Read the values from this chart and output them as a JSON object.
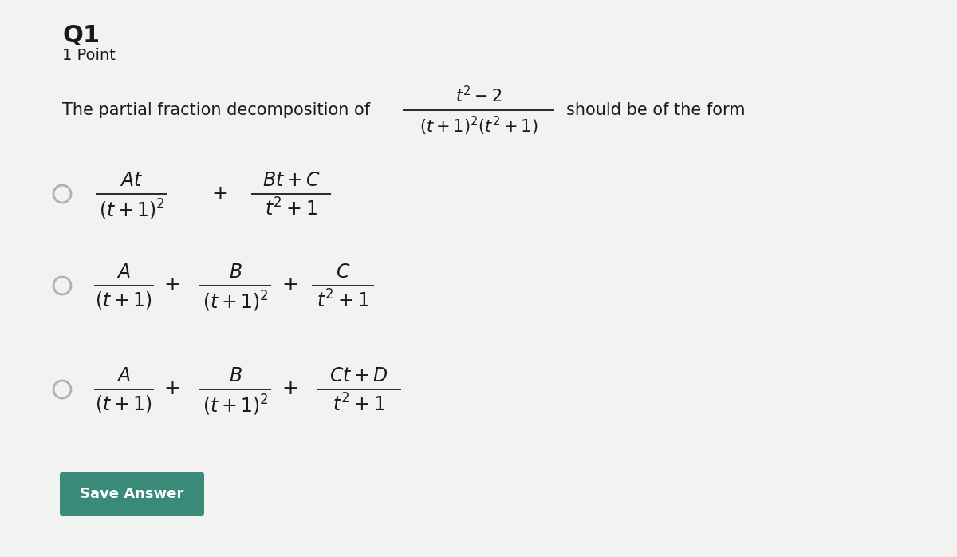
{
  "bg_color": "#f2f2f2",
  "title": "Q1",
  "subtitle": "1 Point",
  "text_color": "#1a1a1a",
  "radio_color": "#b0b0b0",
  "button_color": "#3a8a7a",
  "button_text": "Save Answer",
  "intro_text": "The partial fraction decomposition of",
  "should_text": "should be of the form",
  "frac_num": "$t^2 - 2$",
  "frac_den": "$(t + 1)^2(t^2 + 1)$",
  "opt1_num1": "$At$",
  "opt1_den1": "$(t + 1)^2$",
  "opt1_num2": "$Bt + C$",
  "opt1_den2": "$t^2 + 1$",
  "opt2_num1": "$A$",
  "opt2_den1": "$(t + 1)$",
  "opt2_num2": "$B$",
  "opt2_den2": "$(t + 1)^2$",
  "opt2_num3": "$C$",
  "opt2_den3": "$t^2 + 1$",
  "opt3_num1": "$A$",
  "opt3_den1": "$(t + 1)$",
  "opt3_num2": "$B$",
  "opt3_den2": "$(t + 1)^2$",
  "opt3_num3": "$Ct + D$",
  "opt3_den3": "$t^2 + 1$",
  "plus": "$+$"
}
